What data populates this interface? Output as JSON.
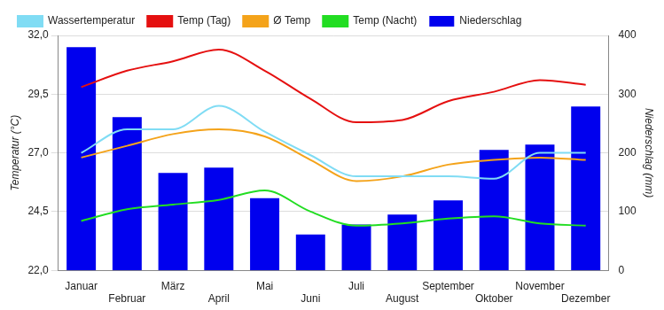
{
  "chart_data": {
    "type": "bar",
    "categories": [
      "Januar",
      "Februar",
      "März",
      "April",
      "Mai",
      "Juni",
      "Juli",
      "August",
      "September",
      "Oktober",
      "November",
      "Dezember"
    ],
    "series": [
      {
        "name": "Niederschlag",
        "type": "bar",
        "axis": "y2",
        "color": "#0000ee",
        "values": [
          380,
          261,
          166,
          175,
          123,
          61,
          78,
          95,
          119,
          205,
          214,
          279
        ]
      },
      {
        "name": "Wassertemperatur",
        "type": "line",
        "color": "#80dcf4",
        "values": [
          27.0,
          28.0,
          28.0,
          29.0,
          27.9,
          26.9,
          26.0,
          26.0,
          26.0,
          25.9,
          27.0,
          27.0
        ]
      },
      {
        "name": "Temp (Tag)",
        "type": "line",
        "color": "#e51010",
        "values": [
          29.8,
          30.5,
          30.9,
          31.4,
          30.5,
          29.3,
          28.3,
          28.4,
          29.2,
          29.6,
          30.1,
          29.9
        ]
      },
      {
        "name": "Ø Temp",
        "type": "line",
        "color": "#f4a31a",
        "values": [
          26.8,
          27.3,
          27.8,
          28.0,
          27.7,
          26.7,
          25.8,
          26.0,
          26.5,
          26.7,
          26.8,
          26.7
        ]
      },
      {
        "name": "Temp (Nacht)",
        "type": "line",
        "color": "#22dd22",
        "values": [
          24.1,
          24.6,
          24.8,
          25.0,
          25.4,
          24.5,
          23.9,
          24.0,
          24.2,
          24.3,
          24.0,
          23.9
        ]
      }
    ],
    "y_label": "Temperatur (°C)",
    "y2_label": "Niederschlag (mm)",
    "ylim": [
      22,
      32
    ],
    "yticks": [
      {
        "value": 22,
        "label": "22,0"
      },
      {
        "value": 24.5,
        "label": "24,5"
      },
      {
        "value": 27,
        "label": "27,0"
      },
      {
        "value": 29.5,
        "label": "29,5"
      },
      {
        "value": 32,
        "label": "32,0"
      }
    ],
    "y2lim": [
      0,
      400
    ],
    "y2ticks": [
      0,
      100,
      200,
      300,
      400
    ],
    "grid": true,
    "legend": "top"
  }
}
